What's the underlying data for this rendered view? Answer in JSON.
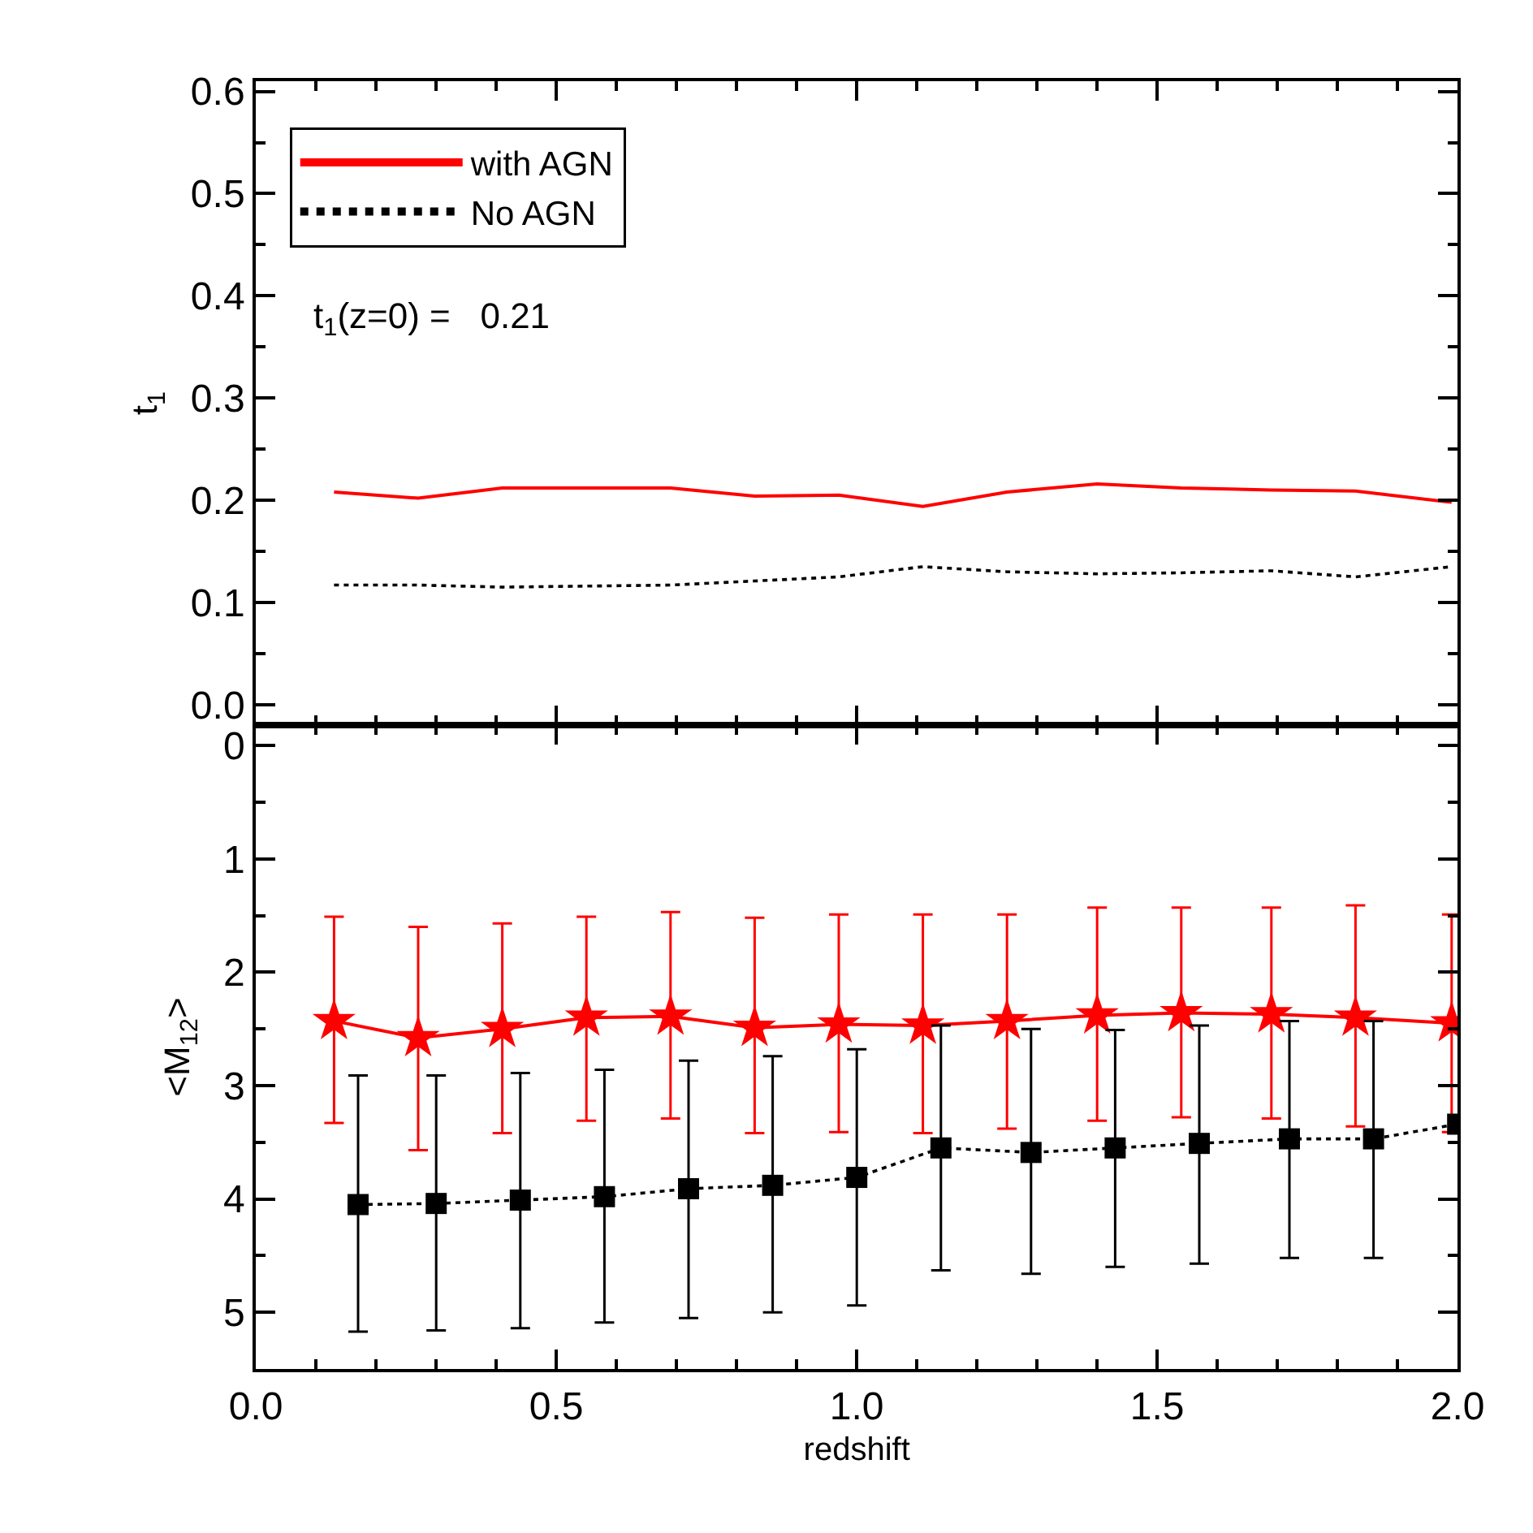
{
  "chart_data": [
    {
      "type": "line",
      "ylabel": "t$_{1}$",
      "tick_labels": "y",
      "legend": "top left",
      "xlim": [
        0,
        2.0
      ],
      "ylim": [
        -0.02,
        0.61
      ],
      "yticks": [
        {
          "value": 0,
          "label": "0.0"
        },
        0.1,
        0.2,
        0.3,
        0.4,
        0.5,
        0.6
      ],
      "annotations": [
        "t$_{1}$(z=0) =   0.21"
      ],
      "x": [
        0.13,
        0.27,
        0.41,
        0.55,
        0.69,
        0.83,
        0.97,
        1.11,
        1.25,
        1.4,
        1.54,
        1.69,
        1.83,
        1.99
      ],
      "series": [
        {
          "name": "with AGN",
          "color": "#ff0000",
          "line_style": "solid",
          "marker": "none",
          "values": [
            0.208,
            0.202,
            0.212,
            0.212,
            0.212,
            0.204,
            0.205,
            0.194,
            0.208,
            0.216,
            0.212,
            0.21,
            0.209,
            0.198
          ]
        },
        {
          "name": "No AGN",
          "color": "#000000",
          "line_style": "dotted",
          "marker": "none",
          "values": [
            0.117,
            0.117,
            0.115,
            0.116,
            0.117,
            0.121,
            0.125,
            0.135,
            0.13,
            0.128,
            0.129,
            0.131,
            0.125,
            0.135
          ]
        }
      ]
    },
    {
      "type": "line",
      "xlabel": "redshift",
      "ylabel": "<M$_{12}$>",
      "xlim": [
        0,
        2.0
      ],
      "xticks": [
        {
          "value": 0,
          "label": "0.0"
        },
        0.5,
        {
          "value": 1,
          "label": "1.0"
        },
        1.5,
        {
          "value": 2,
          "label": "2.0"
        }
      ],
      "ylim": [
        5.5,
        -0.18
      ],
      "yticks": [
        0,
        1,
        2,
        3,
        4,
        5
      ],
      "series": [
        {
          "color": "#ff0000",
          "line_style": "solid",
          "marker": "star",
          "x": [
            0.13,
            0.27,
            0.41,
            0.55,
            0.69,
            0.83,
            0.97,
            1.11,
            1.25,
            1.4,
            1.54,
            1.69,
            1.83,
            1.99
          ],
          "values": [
            2.43,
            2.58,
            2.5,
            2.4,
            2.39,
            2.49,
            2.46,
            2.47,
            2.43,
            2.38,
            2.36,
            2.37,
            2.4,
            2.45
          ],
          "errors": [
            [
              1.51,
              3.33
            ],
            [
              1.6,
              3.57
            ],
            [
              1.57,
              3.42
            ],
            [
              1.51,
              3.31
            ],
            [
              1.47,
              3.29
            ],
            [
              1.52,
              3.42
            ],
            [
              1.49,
              3.41
            ],
            [
              1.49,
              3.42
            ],
            [
              1.49,
              3.38
            ],
            [
              1.43,
              3.31
            ],
            [
              1.43,
              3.28
            ],
            [
              1.43,
              3.29
            ],
            [
              1.41,
              3.36
            ],
            [
              1.49,
              3.41
            ]
          ]
        },
        {
          "color": "#000000",
          "line_style": "dotted",
          "marker": "square",
          "x": [
            0.17,
            0.3,
            0.44,
            0.58,
            0.72,
            0.86,
            1.0,
            1.14,
            1.29,
            1.43,
            1.57,
            1.72,
            1.86,
            2.0
          ],
          "values": [
            4.05,
            4.04,
            4.01,
            3.98,
            3.91,
            3.88,
            3.81,
            3.55,
            3.59,
            3.55,
            3.51,
            3.47,
            3.47,
            3.34
          ],
          "errors": [
            [
              2.91,
              5.17
            ],
            [
              2.91,
              5.16
            ],
            [
              2.89,
              5.14
            ],
            [
              2.86,
              5.09
            ],
            [
              2.78,
              5.05
            ],
            [
              2.74,
              5.0
            ],
            [
              2.68,
              4.94
            ],
            [
              2.47,
              4.63
            ],
            [
              2.5,
              4.66
            ],
            [
              2.51,
              4.6
            ],
            [
              2.47,
              4.57
            ],
            [
              2.43,
              4.52
            ],
            [
              2.43,
              4.52
            ],
            null
          ]
        }
      ]
    }
  ]
}
